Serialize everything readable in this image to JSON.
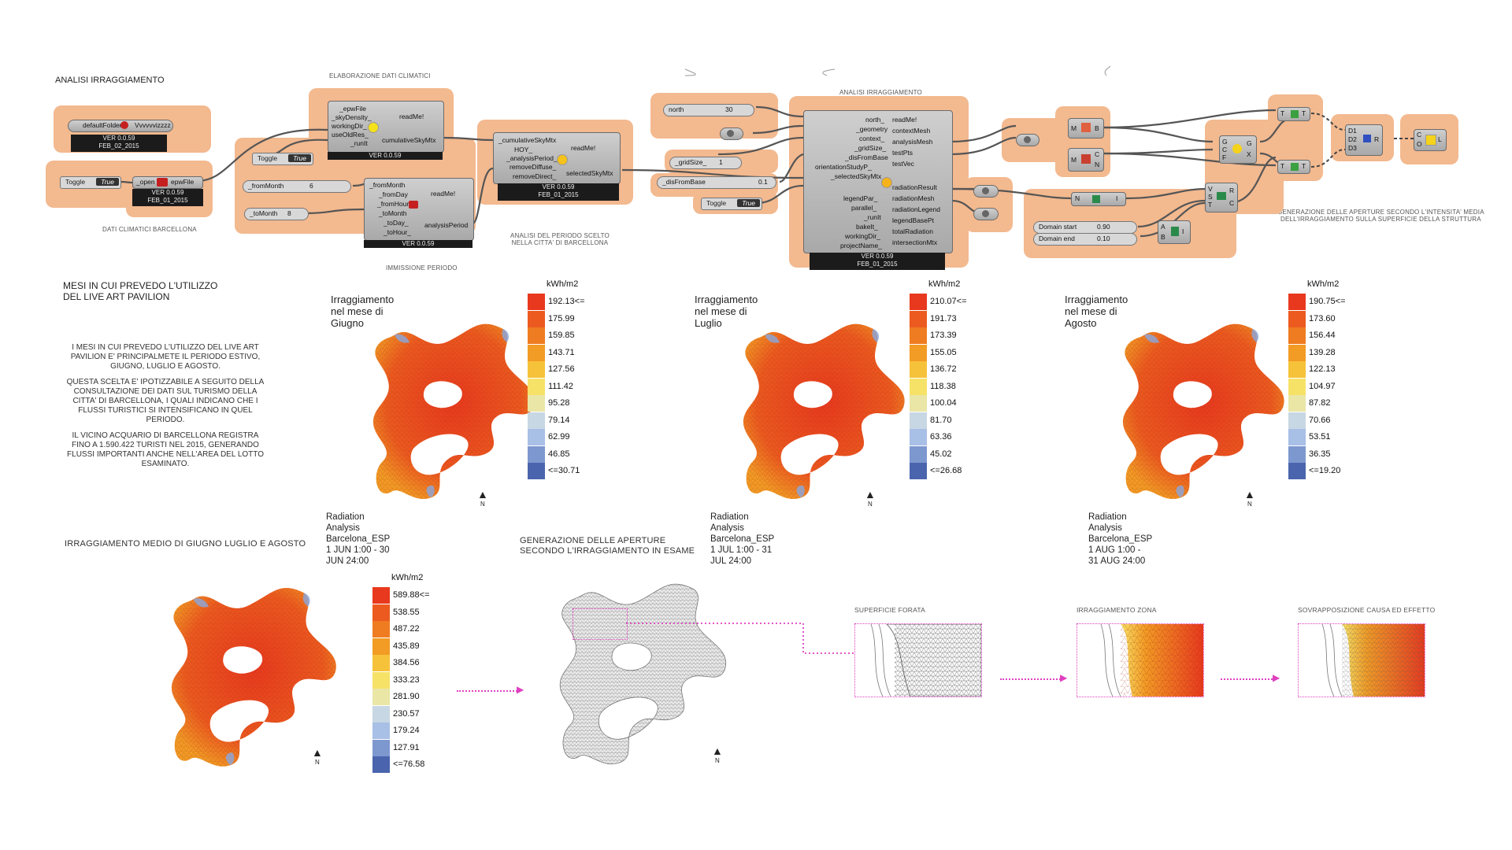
{
  "titles": {
    "analisi": "ANALISI IRRAGGIAMENTO",
    "elaborazione": "ELABORAZIONE DATI CLIMATICI",
    "dati_climatici": "DATI CLIMATICI BARCELLONA",
    "immissione": "IMMISSIONE PERIODO",
    "analisi_periodo_1": "ANALISI DEL PERIODO SCELTO",
    "analisi_periodo_2": "NELLA CITTA' DI BARCELLONA",
    "analisi_irr_center": "ANALISI IRRAGGIAMENTO",
    "generazione_1": "GENERAZIONE DELLE APERTURE SECONDO L'INTENSITA' MEDIA",
    "generazione_2": "DELL'IRRAGGIAMENTO SULLA SUPERFICIE DELLA STRUTTURA",
    "mesi_1": "MESI IN CUI PREVEDO L'UTILIZZO",
    "mesi_2": "DEL LIVE ART PAVILION",
    "irr_medio": "IRRAGGIAMENTO MEDIO DI GIUGNO LUGLIO E AGOSTO",
    "gen_aperture_1": "GENERAZIONE DELLE APERTURE",
    "gen_aperture_2": "SECONDO L'IRRAGGIAMENTO IN ESAME",
    "superficie": "SUPERFICIE FORATA",
    "irr_zona": "IRRAGGIAMENTO ZONA",
    "sovrapposizione": "SOVRAPPOSIZIONE CAUSA ED EFFETTO"
  },
  "paragraph": [
    "I MESI IN CUI PREVEDO L'UTILIZZO DEL LIVE ART",
    "PAVILION E' PRINCIPALMETE IL PERIODO ESTIVO,",
    "GIUGNO, LUGLIO E AGOSTO.",
    "",
    "QUESTA SCELTA E' IPOTIZZABILE A SEGUITO DELLA",
    "CONSULTAZIONE DEI DATI SUL TURISMO DELLA",
    "CITTA' DI BARCELLONA, I QUALI INDICANO CHE I",
    "FLUSSI TURISTICI SI INTENSIFICANO IN QUEL",
    "PERIODO.",
    "",
    "IL VICINO ACQUARIO DI BARCELLONA REGISTRA",
    "FINO A 1.590.422 TURISTI NEL 2015, GENERANDO",
    "FLUSSI IMPORTANTI ANCHE NELL'AREA DEL LOTTO",
    "ESAMINATO."
  ],
  "nodes": {
    "defaultFolder": "defaultFolder",
    "vvv": "Vvvvvvizzzz",
    "ver1": "VER 0.0.59",
    "date1": "FEB_02_2015",
    "toggle": "Toggle",
    "true": "True",
    "open": "_open",
    "epwFile": "epwFile",
    "ver2": "VER 0.0.59",
    "date2": "FEB_01_2015",
    "sky_in": [
      "_epwFile",
      "_skyDensity_",
      "workingDir_",
      "useOldRes_",
      "_runIt"
    ],
    "sky_out": [
      "readMe!",
      "cumulativeSkyMtx"
    ],
    "sky_ver": "VER 0.0.59",
    "fromMonth": "_fromMonth",
    "fromMonthVal": "6",
    "toMonth": "_toMonth",
    "toMonthVal": "8",
    "per_in": [
      "_fromMonth",
      "_fromDay",
      "_fromHour",
      "_toMonth",
      "_toDay_",
      "_toHour_"
    ],
    "per_out": [
      "readMe!",
      "analysisPeriod"
    ],
    "per_ver": "VER 0.0.59",
    "sel_in": [
      "_cumulativeSkyMtx",
      "HOY_",
      "_analysisPeriod_",
      "removeDiffuse_",
      "removeDirect_"
    ],
    "sel_out": [
      "readMe!",
      "selectedSkyMtx"
    ],
    "sel_ver": "VER 0.0.59",
    "sel_date": "FEB_01_2015",
    "north": "north",
    "northVal": "30",
    "gridSize": "_gridSize_",
    "gridVal": "1",
    "disFromBase": "_disFromBase",
    "disVal": "0.1",
    "rad_in": [
      "north_",
      "_geometry",
      "context_",
      "_gridSize_",
      "_disFromBase",
      "orientationStudyP_",
      "_selectedSkyMtx"
    ],
    "rad_in2": [
      "legendPar_",
      "parallel_",
      "_runIt",
      "bakeIt_",
      "workingDir_",
      "projectName_"
    ],
    "rad_out": [
      "readMe!",
      "contextMesh",
      "analysisMesh",
      "testPts",
      "testVec"
    ],
    "rad_out2": [
      "radiationResult",
      "radiationMesh",
      "radiationLegend",
      "legendBasePt",
      "totalRadiation",
      "intersectionMtx"
    ],
    "rad_ver": "VER 0.0.59",
    "rad_date": "FEB_01_2015",
    "domainStart": "Domain start",
    "domainStartVal": "0.90",
    "domainEnd": "Domain end",
    "domainEndVal": "0.10"
  },
  "maps": [
    {
      "title": "Irraggiamento nel mese di Giugno",
      "unit": "kWh/m2",
      "values": [
        "192.13<=",
        "175.99",
        "159.85",
        "143.71",
        "127.56",
        "111.42",
        "95.28",
        "79.14",
        "62.99",
        "46.85",
        "<=30.71"
      ],
      "caption": [
        "Radiation Analysis",
        "Barcelona_ESP",
        "1 JUN 1:00 - 30 JUN 24:00"
      ]
    },
    {
      "title": "Irraggiamento nel mese di Luglio",
      "unit": "kWh/m2",
      "values": [
        "210.07<=",
        "191.73",
        "173.39",
        "155.05",
        "136.72",
        "118.38",
        "100.04",
        "81.70",
        "63.36",
        "45.02",
        "<=26.68"
      ],
      "caption": [
        "Radiation Analysis",
        "Barcelona_ESP",
        "1 JUL 1:00 - 31 JUL 24:00"
      ]
    },
    {
      "title": "Irraggiamento nel mese di Agosto",
      "unit": "kWh/m2",
      "values": [
        "190.75<=",
        "173.60",
        "156.44",
        "139.28",
        "122.13",
        "104.97",
        "87.82",
        "70.66",
        "53.51",
        "36.35",
        "<=19.20"
      ],
      "caption": [
        "Radiation Analysis",
        "Barcelona_ESP",
        "1 AUG 1:00 - 31 AUG 24:00"
      ]
    }
  ],
  "average": {
    "unit": "kWh/m2",
    "values": [
      "589.88<=",
      "538.55",
      "487.22",
      "435.89",
      "384.56",
      "333.23",
      "281.90",
      "230.57",
      "179.24",
      "127.91",
      "<=76.58"
    ]
  },
  "north_label": "N",
  "palette": [
    "#e8391e",
    "#ec5a1f",
    "#ef7c21",
    "#f29b25",
    "#f6c23a",
    "#f7e268",
    "#e9e6a6",
    "#c7d7e3",
    "#a8bfe6",
    "#7d97cf",
    "#4a65ad"
  ]
}
